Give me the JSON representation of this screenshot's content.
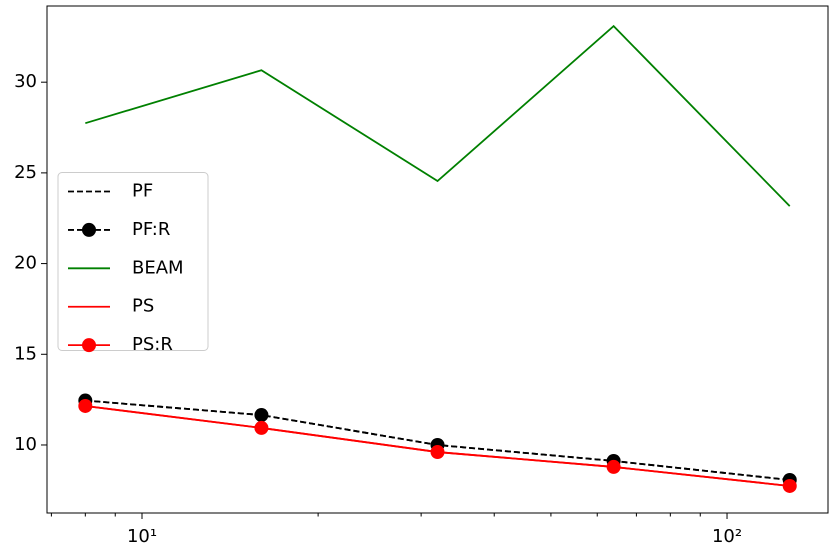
{
  "chart_data": {
    "type": "line",
    "x": [
      8,
      16,
      32,
      64,
      128
    ],
    "xscale": "log",
    "xlim": [
      6.88,
      148.8
    ],
    "xticks": [
      {
        "value": 10,
        "label": "10¹"
      },
      {
        "value": 100,
        "label": "10²"
      }
    ],
    "xminorticks": [
      7,
      8,
      9,
      20,
      30,
      40,
      50,
      60,
      70,
      80,
      90
    ],
    "ylim": [
      6.25,
      34.2
    ],
    "yticks": [
      10,
      15,
      20,
      25,
      30
    ],
    "legend": "center left",
    "series": [
      {
        "name": "PF",
        "color": "#000000",
        "linestyle": "dashed",
        "marker": false,
        "values": [
          12.45,
          11.65,
          10.0,
          9.12,
          8.07
        ]
      },
      {
        "name": "PF:R",
        "color": "#000000",
        "linestyle": "dashed",
        "marker": true,
        "values": [
          12.45,
          11.65,
          10.0,
          9.12,
          8.07
        ]
      },
      {
        "name": "BEAM",
        "color": "#008000",
        "linestyle": "solid",
        "marker": false,
        "values": [
          27.74,
          30.66,
          24.55,
          33.09,
          23.17
        ]
      },
      {
        "name": "PS",
        "color": "#ff0000",
        "linestyle": "solid",
        "marker": false,
        "values": [
          12.15,
          10.94,
          9.61,
          8.79,
          7.74
        ]
      },
      {
        "name": "PS:R",
        "color": "#ff0000",
        "linestyle": "solid",
        "marker": true,
        "values": [
          12.15,
          10.94,
          9.61,
          8.79,
          7.74
        ]
      }
    ]
  }
}
